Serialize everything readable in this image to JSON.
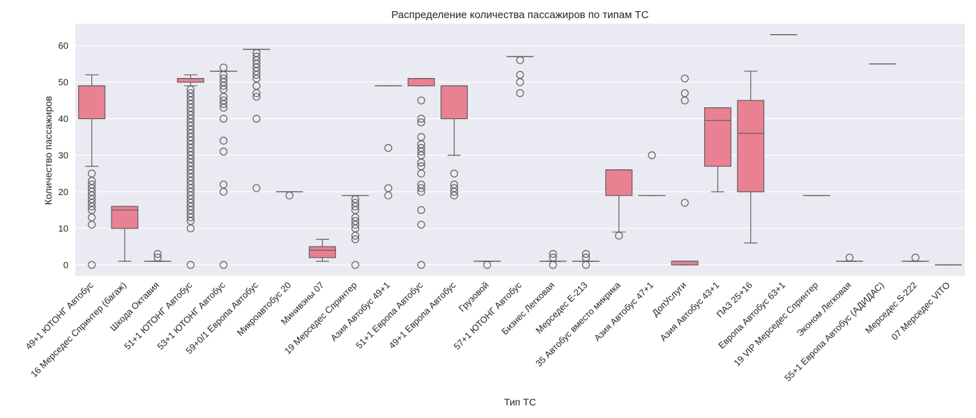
{
  "chart_data": {
    "type": "box",
    "title": "Распределение количества пассажиров по типам ТС",
    "xlabel": "Тип ТС",
    "ylabel": "Количество пассажиров",
    "ylim": [
      -3,
      66
    ],
    "yticks": [
      0,
      10,
      20,
      30,
      40,
      50,
      60
    ],
    "grid": true,
    "colors": {
      "box_fill": "#ea8193",
      "line": "#5f5f5f",
      "background": "#eaeaf2",
      "grid": "#ffffff"
    },
    "categories": [
      "49+1 ЮТОНГ Автобус",
      "16 Мерседес Спринтер (багаж)",
      "Шкода Октавия",
      "51+1 ЮТОНГ Автобус",
      "53+1 ЮТОНГ Автобус",
      "59+0/1 Европа Автобус",
      "Микроавтобус 20",
      "Минивэны 07",
      "19 Мерседес Спринтер",
      "Азия Автобус 49+1",
      "51+1 Европа Автобус",
      "49+1 Европа Автобус",
      "Грузовой",
      "57+1 ЮТОНГ Автобус",
      "Бизнес Легковая",
      "Мерседес E-213",
      "35 Автобус вместо микрика",
      "Азия Автобус 47+1",
      "ДопУслуги",
      "Азия Автобус 43+1",
      "ПАЗ 25+16",
      "Европа Автобус 63+1",
      "19 VIP Мерседес Спринтер",
      "Эконом Легковая",
      "55+1 Европа Автобус (АДИДАС)",
      "Мерседес S-222",
      "07 Мерседес VITO"
    ],
    "boxes": [
      {
        "q1": 40,
        "median": 49,
        "q3": 49,
        "whisker_low": 27,
        "whisker_high": 52,
        "outliers": [
          0,
          11,
          13,
          15,
          16,
          17,
          18,
          19,
          20,
          21,
          22,
          23,
          25
        ]
      },
      {
        "q1": 10,
        "median": 15,
        "q3": 16,
        "whisker_low": 1,
        "whisker_high": 16,
        "outliers": []
      },
      {
        "q1": 1,
        "median": 1,
        "q3": 1,
        "whisker_low": 1,
        "whisker_high": 1,
        "outliers": [
          2,
          3
        ]
      },
      {
        "q1": 50,
        "median": 51,
        "q3": 51,
        "whisker_low": 49,
        "whisker_high": 52,
        "outliers": [
          0,
          10,
          12,
          13,
          14,
          15,
          16,
          17,
          18,
          19,
          20,
          21,
          22,
          23,
          24,
          25,
          26,
          27,
          28,
          29,
          30,
          31,
          32,
          33,
          34,
          35,
          36,
          37,
          38,
          39,
          40,
          41,
          42,
          43,
          44,
          45,
          46,
          47,
          48
        ]
      },
      {
        "q1": 53,
        "median": 53,
        "q3": 53,
        "whisker_low": 53,
        "whisker_high": 53,
        "outliers": [
          0,
          20,
          22,
          31,
          34,
          40,
          43,
          44,
          45,
          46,
          48,
          49,
          50,
          51,
          52,
          54
        ]
      },
      {
        "q1": 59,
        "median": 59,
        "q3": 59,
        "whisker_low": 59,
        "whisker_high": 59,
        "outliers": [
          21,
          40,
          46,
          47,
          49,
          51,
          52,
          53,
          54,
          55,
          56,
          57,
          58
        ]
      },
      {
        "q1": 20,
        "median": 20,
        "q3": 20,
        "whisker_low": 20,
        "whisker_high": 20,
        "outliers": [
          19
        ]
      },
      {
        "q1": 2,
        "median": 4,
        "q3": 5,
        "whisker_low": 1,
        "whisker_high": 7,
        "outliers": []
      },
      {
        "q1": 19,
        "median": 19,
        "q3": 19,
        "whisker_low": 19,
        "whisker_high": 19,
        "outliers": [
          0,
          7,
          8,
          10,
          11,
          12,
          13,
          15,
          16,
          17,
          18
        ]
      },
      {
        "q1": 49,
        "median": 49,
        "q3": 49,
        "whisker_low": 49,
        "whisker_high": 49,
        "outliers": [
          19,
          21,
          32
        ]
      },
      {
        "q1": 49,
        "median": 51,
        "q3": 51,
        "whisker_low": 49,
        "whisker_high": 51,
        "outliers": [
          0,
          11,
          15,
          20,
          21,
          22,
          25,
          27,
          28,
          30,
          31,
          32,
          33,
          35,
          39,
          40,
          45
        ]
      },
      {
        "q1": 40,
        "median": 49,
        "q3": 49,
        "whisker_low": 30,
        "whisker_high": 49,
        "outliers": [
          19,
          20,
          21,
          22,
          25
        ]
      },
      {
        "q1": 1,
        "median": 1,
        "q3": 1,
        "whisker_low": 1,
        "whisker_high": 1,
        "outliers": [
          0
        ]
      },
      {
        "q1": 57,
        "median": 57,
        "q3": 57,
        "whisker_low": 57,
        "whisker_high": 57,
        "outliers": [
          47,
          50,
          52,
          56
        ]
      },
      {
        "q1": 1,
        "median": 1,
        "q3": 1,
        "whisker_low": 1,
        "whisker_high": 1,
        "outliers": [
          0,
          2,
          3
        ]
      },
      {
        "q1": 1,
        "median": 1,
        "q3": 1,
        "whisker_low": 1,
        "whisker_high": 1,
        "outliers": [
          0,
          2,
          3
        ]
      },
      {
        "q1": 19,
        "median": 26,
        "q3": 26,
        "whisker_low": 9,
        "whisker_high": 26,
        "outliers": [
          8
        ]
      },
      {
        "q1": 19,
        "median": 19,
        "q3": 19,
        "whisker_low": 19,
        "whisker_high": 19,
        "outliers": [
          30
        ]
      },
      {
        "q1": 0,
        "median": 1,
        "q3": 1,
        "whisker_low": 0,
        "whisker_high": 1,
        "outliers": [
          17,
          45,
          47,
          51
        ]
      },
      {
        "q1": 27,
        "median": 39.5,
        "q3": 43,
        "whisker_low": 20,
        "whisker_high": 43,
        "outliers": []
      },
      {
        "q1": 20,
        "median": 36,
        "q3": 45,
        "whisker_low": 6,
        "whisker_high": 53,
        "outliers": []
      },
      {
        "q1": 63,
        "median": 63,
        "q3": 63,
        "whisker_low": 63,
        "whisker_high": 63,
        "outliers": []
      },
      {
        "q1": 19,
        "median": 19,
        "q3": 19,
        "whisker_low": 19,
        "whisker_high": 19,
        "outliers": []
      },
      {
        "q1": 1,
        "median": 1,
        "q3": 1,
        "whisker_low": 1,
        "whisker_high": 1,
        "outliers": [
          2
        ]
      },
      {
        "q1": 55,
        "median": 55,
        "q3": 55,
        "whisker_low": 55,
        "whisker_high": 55,
        "outliers": []
      },
      {
        "q1": 1,
        "median": 1,
        "q3": 1,
        "whisker_low": 1,
        "whisker_high": 1,
        "outliers": [
          2
        ]
      },
      {
        "q1": 0,
        "median": 0,
        "q3": 0,
        "whisker_low": 0,
        "whisker_high": 0,
        "outliers": []
      }
    ]
  }
}
